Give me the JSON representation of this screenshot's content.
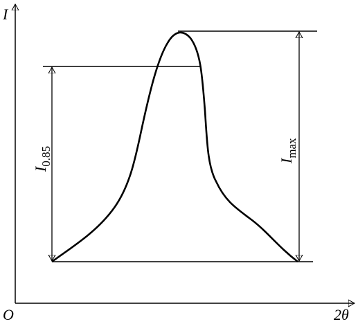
{
  "axes": {
    "y_label": "I",
    "x_label": "2θ",
    "origin": "O"
  },
  "annotations": [
    {
      "symbol": "I",
      "subscript": "0.85"
    },
    {
      "symbol": "I",
      "subscript": "max"
    }
  ]
}
